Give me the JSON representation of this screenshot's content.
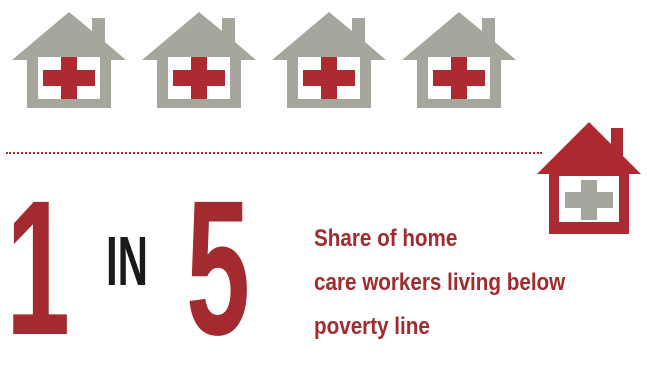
{
  "houses": {
    "count": 4,
    "icon": "house-medical-icon",
    "house_color": "#a7a69c",
    "cross_color": "#ad2a30"
  },
  "highlight_house": {
    "icon": "house-medical-icon",
    "house_color": "#ad2a30",
    "cross_color": "#a7a69c"
  },
  "stat": {
    "numerator": "1",
    "word": "IN",
    "denominator": "5",
    "caption_line1": "Share of home",
    "caption_line2": "care workers living below",
    "caption_line3": "poverty line"
  },
  "colors": {
    "accent": "#a32a2e",
    "text_dark": "#1a1a1a",
    "divider": "#b0282c"
  }
}
